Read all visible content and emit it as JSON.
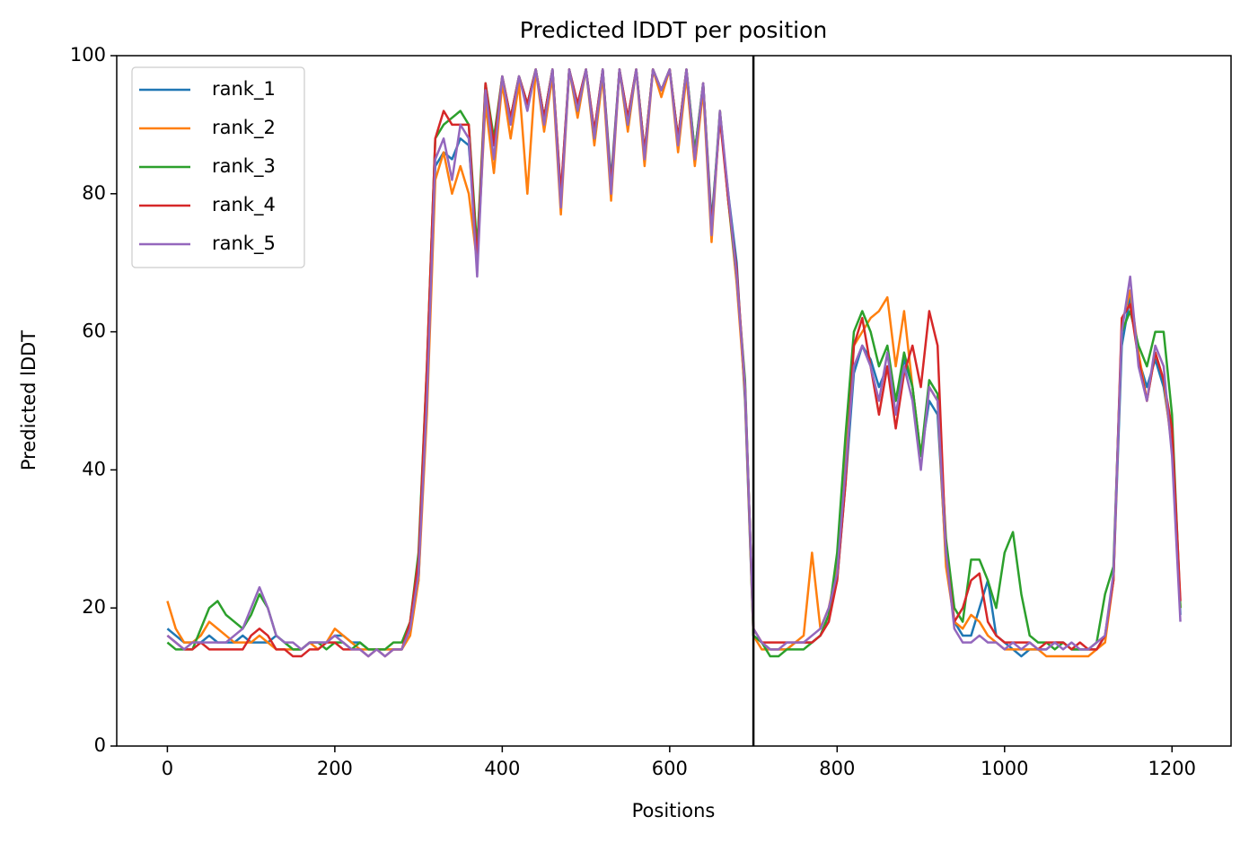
{
  "chart_data": {
    "type": "line",
    "title": "Predicted lDDT per position",
    "x_label": "Positions",
    "y_label": "Predicted lDDT",
    "x": [
      0,
      10,
      20,
      30,
      40,
      50,
      60,
      70,
      80,
      90,
      100,
      110,
      120,
      130,
      140,
      150,
      160,
      170,
      180,
      190,
      200,
      210,
      220,
      230,
      240,
      250,
      260,
      270,
      280,
      290,
      300,
      310,
      320,
      330,
      340,
      350,
      360,
      370,
      380,
      390,
      400,
      410,
      420,
      430,
      440,
      450,
      460,
      470,
      480,
      490,
      500,
      510,
      520,
      530,
      540,
      550,
      560,
      570,
      580,
      590,
      600,
      610,
      620,
      630,
      640,
      650,
      660,
      670,
      680,
      690,
      700,
      710,
      720,
      730,
      740,
      750,
      760,
      770,
      780,
      790,
      800,
      810,
      820,
      830,
      840,
      850,
      860,
      870,
      880,
      890,
      900,
      910,
      920,
      930,
      940,
      950,
      960,
      970,
      980,
      990,
      1000,
      1010,
      1020,
      1030,
      1040,
      1050,
      1060,
      1070,
      1080,
      1090,
      1100,
      1110,
      1120,
      1130,
      1140,
      1150,
      1160,
      1170,
      1180,
      1190,
      1200,
      1210
    ],
    "series": [
      {
        "name": "rank_1",
        "color": "#1f77b4",
        "values": [
          17,
          16,
          15,
          15,
          15,
          16,
          15,
          15,
          15,
          16,
          15,
          15,
          15,
          16,
          15,
          14,
          14,
          15,
          15,
          15,
          16,
          16,
          15,
          15,
          14,
          14,
          14,
          14,
          14,
          17,
          24,
          52,
          84,
          86,
          85,
          88,
          87,
          72,
          94,
          88,
          96,
          91,
          97,
          93,
          98,
          91,
          98,
          80,
          98,
          93,
          98,
          89,
          98,
          82,
          98,
          91,
          98,
          86,
          98,
          95,
          98,
          88,
          98,
          86,
          96,
          76,
          91,
          80,
          70,
          50,
          16,
          15,
          14,
          14,
          14,
          15,
          15,
          15,
          16,
          19,
          24,
          38,
          54,
          58,
          56,
          52,
          55,
          50,
          56,
          52,
          42,
          50,
          48,
          27,
          18,
          16,
          16,
          20,
          24,
          16,
          15,
          14,
          13,
          14,
          14,
          14,
          15,
          15,
          14,
          14,
          14,
          14,
          16,
          24,
          58,
          65,
          56,
          52,
          56,
          52,
          44,
          19
        ]
      },
      {
        "name": "rank_2",
        "color": "#ff7f0e",
        "values": [
          21,
          17,
          15,
          15,
          16,
          18,
          17,
          16,
          15,
          15,
          15,
          16,
          15,
          14,
          14,
          14,
          14,
          15,
          14,
          15,
          17,
          16,
          15,
          14,
          14,
          14,
          14,
          14,
          14,
          16,
          24,
          48,
          82,
          86,
          80,
          84,
          80,
          70,
          93,
          83,
          96,
          88,
          96,
          80,
          98,
          89,
          97,
          77,
          98,
          91,
          98,
          87,
          97,
          79,
          98,
          89,
          98,
          84,
          98,
          94,
          98,
          86,
          97,
          84,
          95,
          73,
          92,
          79,
          67,
          51,
          16,
          14,
          14,
          14,
          14,
          15,
          16,
          28,
          17,
          20,
          26,
          42,
          58,
          60,
          62,
          63,
          65,
          55,
          63,
          52,
          42,
          52,
          50,
          26,
          18,
          17,
          19,
          18,
          16,
          15,
          14,
          14,
          14,
          14,
          14,
          13,
          13,
          13,
          13,
          13,
          13,
          14,
          15,
          24,
          61,
          66,
          57,
          50,
          57,
          53,
          43,
          20
        ]
      },
      {
        "name": "rank_3",
        "color": "#2ca02c",
        "values": [
          15,
          14,
          14,
          14,
          17,
          20,
          21,
          19,
          18,
          17,
          19,
          22,
          20,
          16,
          15,
          14,
          14,
          15,
          15,
          14,
          15,
          15,
          14,
          15,
          14,
          14,
          14,
          15,
          15,
          18,
          28,
          55,
          88,
          90,
          91,
          92,
          90,
          72,
          96,
          88,
          97,
          91,
          97,
          93,
          98,
          91,
          98,
          79,
          98,
          92,
          98,
          88,
          98,
          81,
          98,
          90,
          98,
          86,
          98,
          95,
          98,
          88,
          98,
          86,
          96,
          75,
          92,
          79,
          68,
          53,
          16,
          15,
          13,
          13,
          14,
          14,
          14,
          15,
          16,
          19,
          28,
          45,
          60,
          63,
          60,
          55,
          58,
          50,
          57,
          52,
          42,
          53,
          51,
          30,
          20,
          18,
          27,
          27,
          24,
          20,
          28,
          31,
          22,
          16,
          15,
          15,
          14,
          15,
          14,
          14,
          14,
          15,
          22,
          26,
          60,
          63,
          58,
          55,
          60,
          60,
          48,
          20
        ]
      },
      {
        "name": "rank_4",
        "color": "#d62728",
        "values": [
          16,
          15,
          14,
          14,
          15,
          14,
          14,
          14,
          14,
          14,
          16,
          17,
          16,
          14,
          14,
          13,
          13,
          14,
          14,
          15,
          15,
          14,
          14,
          14,
          13,
          14,
          13,
          14,
          14,
          18,
          27,
          55,
          88,
          92,
          90,
          90,
          90,
          70,
          96,
          87,
          97,
          91,
          97,
          93,
          98,
          91,
          98,
          80,
          98,
          93,
          98,
          89,
          98,
          81,
          98,
          91,
          98,
          86,
          98,
          95,
          98,
          88,
          98,
          85,
          96,
          75,
          91,
          79,
          69,
          52,
          17,
          15,
          15,
          15,
          15,
          15,
          15,
          15,
          16,
          18,
          24,
          38,
          58,
          62,
          55,
          48,
          55,
          46,
          54,
          58,
          52,
          63,
          58,
          28,
          18,
          20,
          24,
          25,
          18,
          16,
          15,
          15,
          15,
          15,
          14,
          15,
          15,
          15,
          14,
          15,
          14,
          14,
          16,
          24,
          62,
          64,
          56,
          50,
          57,
          53,
          46,
          21
        ]
      },
      {
        "name": "rank_5",
        "color": "#9467bd",
        "values": [
          16,
          15,
          14,
          15,
          15,
          15,
          15,
          15,
          16,
          17,
          20,
          23,
          20,
          16,
          15,
          15,
          14,
          15,
          15,
          15,
          16,
          15,
          14,
          14,
          13,
          14,
          13,
          14,
          14,
          17,
          25,
          50,
          85,
          88,
          82,
          90,
          88,
          68,
          95,
          85,
          97,
          90,
          97,
          92,
          98,
          90,
          98,
          78,
          98,
          92,
          98,
          88,
          98,
          80,
          98,
          90,
          98,
          85,
          98,
          95,
          98,
          87,
          98,
          85,
          96,
          74,
          92,
          80,
          68,
          52,
          17,
          15,
          14,
          14,
          15,
          15,
          15,
          16,
          17,
          20,
          25,
          40,
          55,
          58,
          55,
          50,
          57,
          48,
          55,
          50,
          40,
          52,
          50,
          28,
          17,
          15,
          15,
          16,
          15,
          15,
          14,
          15,
          14,
          15,
          14,
          14,
          15,
          14,
          15,
          14,
          14,
          15,
          16,
          25,
          60,
          68,
          55,
          50,
          58,
          55,
          42,
          18
        ]
      }
    ],
    "vline": 700,
    "vline_color": "#000000",
    "xlim": [
      -60.5,
      1270.5
    ],
    "xticks": [
      0,
      200,
      400,
      600,
      800,
      1000,
      1200
    ],
    "ylim": [
      0,
      100
    ],
    "yticks": [
      0,
      20,
      40,
      60,
      80,
      100
    ],
    "grid": false,
    "legend": "upper left"
  }
}
